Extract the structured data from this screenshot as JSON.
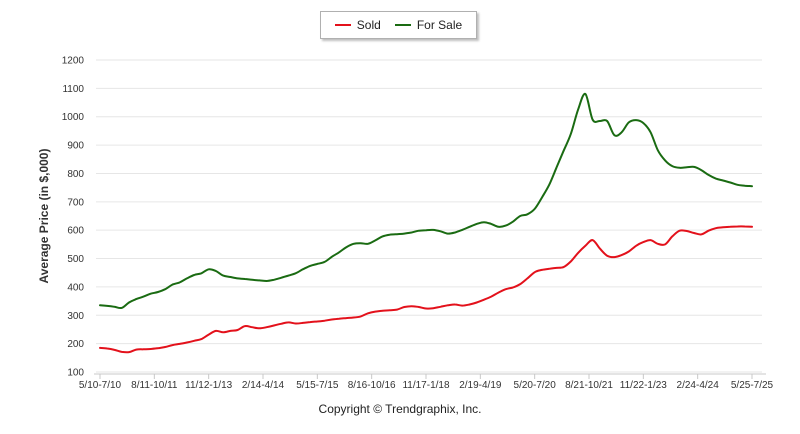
{
  "legend": [
    {
      "name": "Sold",
      "color": "#e3111b"
    },
    {
      "name": "For Sale",
      "color": "#1a6b12"
    }
  ],
  "copyright": "Copyright © Trendgraphix, Inc.",
  "chart_data": {
    "type": "line",
    "title": "",
    "xlabel": "",
    "ylabel": "Average Price (in $,000)",
    "ylim": [
      100,
      1200
    ],
    "yticks": [
      100,
      200,
      300,
      400,
      500,
      600,
      700,
      800,
      900,
      1000,
      1100,
      1200
    ],
    "grid": true,
    "legend_position": "top-center",
    "n_points": 91,
    "xtick_labels": [
      "5/10-7/10",
      "8/11-10/11",
      "11/12-1/13",
      "2/14-4/14",
      "5/15-7/15",
      "8/16-10/16",
      "11/17-1/18",
      "2/19-4/19",
      "5/20-7/20",
      "8/21-10/21",
      "11/22-1/23",
      "2/24-4/24",
      "5/25-7/25"
    ],
    "xtick_positions": [
      0,
      7.5,
      15,
      22.5,
      30,
      37.5,
      45,
      52.5,
      60,
      67.5,
      75,
      82.5,
      90
    ],
    "series": [
      {
        "name": "Sold",
        "color": "#e3111b",
        "values": [
          185,
          183,
          178,
          171,
          170,
          179,
          180,
          181,
          184,
          188,
          195,
          199,
          204,
          210,
          216,
          232,
          245,
          240,
          245,
          248,
          262,
          258,
          254,
          258,
          264,
          270,
          275,
          271,
          273,
          276,
          278,
          281,
          285,
          288,
          290,
          292,
          296,
          307,
          313,
          316,
          318,
          320,
          329,
          332,
          329,
          324,
          325,
          330,
          335,
          338,
          334,
          338,
          345,
          355,
          366,
          380,
          392,
          398,
          410,
          430,
          452,
          460,
          464,
          467,
          470,
          490,
          520,
          545,
          565,
          535,
          510,
          505,
          512,
          525,
          545,
          558,
          565,
          552,
          550,
          578,
          598,
          597,
          590,
          585,
          598,
          607,
          610,
          612,
          613,
          613,
          612
        ]
      },
      {
        "name": "For Sale",
        "color": "#1a6b12",
        "values": [
          335,
          333,
          330,
          326,
          345,
          357,
          366,
          376,
          382,
          392,
          408,
          416,
          430,
          442,
          448,
          462,
          456,
          440,
          435,
          430,
          428,
          425,
          423,
          421,
          425,
          432,
          440,
          448,
          462,
          474,
          481,
          488,
          506,
          522,
          540,
          552,
          554,
          552,
          564,
          578,
          584,
          586,
          588,
          592,
          598,
          600,
          601,
          596,
          588,
          592,
          601,
          612,
          622,
          628,
          622,
          612,
          616,
          630,
          650,
          656,
          675,
          715,
          760,
          820,
          880,
          940,
          1025,
          1080,
          990,
          985,
          985,
          935,
          945,
          980,
          988,
          978,
          945,
          882,
          846,
          826,
          820,
          822,
          823,
          812,
          795,
          782,
          775,
          768,
          760,
          757,
          755
        ]
      }
    ]
  }
}
